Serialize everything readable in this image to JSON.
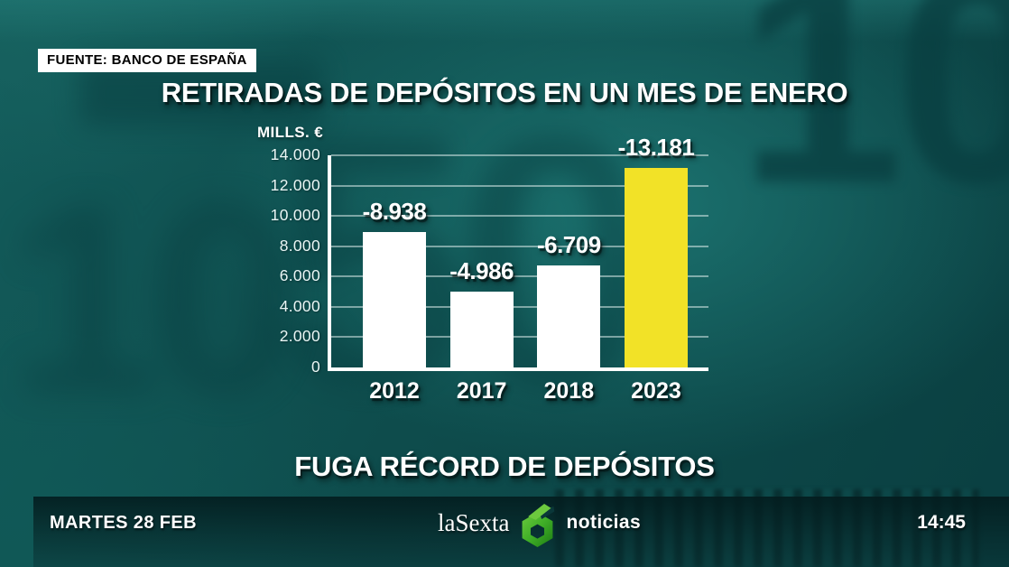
{
  "source_badge": "FUENTE: BANCO DE ESPAÑA",
  "title": "RETIRADAS DE DEPÓSITOS EN UN MES DE ENERO",
  "lower_title": "FUGA RÉCORD DE DEPÓSITOS",
  "chart_data": {
    "type": "bar",
    "title": "RETIRADAS DE DEPÓSITOS EN UN MES DE ENERO",
    "unit_label": "MILLS. €",
    "categories": [
      "2012",
      "2017",
      "2018",
      "2023"
    ],
    "values": [
      8938,
      4986,
      6709,
      13181
    ],
    "bar_labels": [
      "-8.938",
      "-4.986",
      "-6.709",
      "-13.181"
    ],
    "bar_colors": [
      "#ffffff",
      "#ffffff",
      "#ffffff",
      "#f2e227"
    ],
    "highlight_category": "2023",
    "ylim": [
      0,
      14000
    ],
    "ytick_interval": 2000,
    "yticks": [
      "14.000",
      "12.000",
      "10.000",
      "8.000",
      "6.000",
      "4.000",
      "2.000",
      "0"
    ],
    "grid": true,
    "legend": "none",
    "xlabel": "",
    "ylabel": "MILLS. €"
  },
  "ticker": {
    "date": "MARTES 28 FEB",
    "channel": "laSexta",
    "program": "noticias",
    "time": "14:45"
  },
  "background": {
    "digits": [
      "50",
      "10",
      "10"
    ]
  },
  "colors": {
    "background_teal": "#0e4c4c",
    "highlight_yellow": "#f2e227",
    "bar_white": "#ffffff",
    "logo_green_light": "#6cc93e",
    "logo_green_dark": "#1d7c14"
  }
}
